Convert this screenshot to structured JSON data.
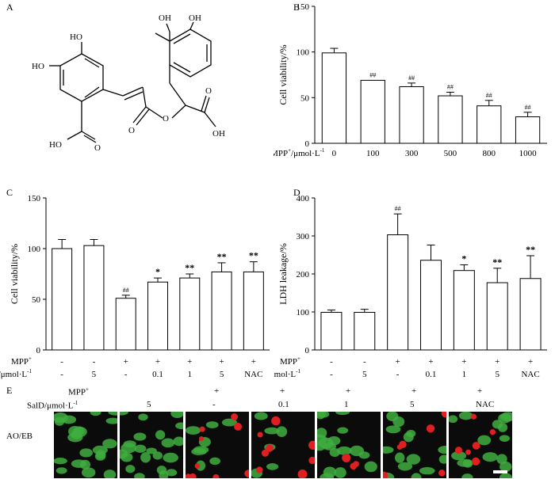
{
  "panels": {
    "a": "A",
    "b": "B",
    "c": "C",
    "d": "D",
    "e": "E"
  },
  "structure_labels": {
    "oh1": "HO",
    "oh2": "HO",
    "oh3": "OH",
    "oh4": "OH",
    "acid1_ho": "HO",
    "acid1_o": "O",
    "ester_o1": "O",
    "ester_o2": "O",
    "acid2_o": "O",
    "acid2_oh": "OH"
  },
  "panel_e": {
    "row_label_mpp": "MPP",
    "row_label_mpp_sup": "+",
    "row_label_sald": "SalD/μmol·L",
    "row_label_sald_sup": "-1",
    "stain_label": "AO/EB",
    "mpp": [
      "",
      "",
      "+",
      "+",
      "+",
      "+",
      "+"
    ],
    "sald": [
      "",
      "5",
      "-",
      "0.1",
      "1",
      "5",
      "NAC"
    ],
    "images": [
      {
        "green": 22,
        "red": 0
      },
      {
        "green": 22,
        "red": 0
      },
      {
        "green": 8,
        "red": 9
      },
      {
        "green": 6,
        "red": 8
      },
      {
        "green": 18,
        "red": 3
      },
      {
        "green": 14,
        "red": 6
      },
      {
        "green": 16,
        "red": 6
      }
    ],
    "colors": {
      "green": "#3fae3f",
      "red": "#e02020",
      "background": "#0b0b0b"
    }
  },
  "chart_data": [
    {
      "id": "B",
      "type": "bar",
      "ylabel": "Cell viability/%",
      "ylim": [
        0,
        150
      ],
      "yticks": [
        0,
        50,
        100,
        150
      ],
      "row_label": "MPP",
      "row_label_sup": "+",
      "row_label_unit": "/μmol·L",
      "row_label_unit_sup": "-1",
      "categories": [
        "0",
        "100",
        "300",
        "500",
        "800",
        "1000"
      ],
      "values": [
        99,
        69,
        62,
        52,
        41,
        29
      ],
      "errors": [
        5,
        0,
        4,
        4,
        6,
        5
      ],
      "annotations": [
        "",
        "##",
        "##",
        "##",
        "##",
        "##"
      ]
    },
    {
      "id": "C",
      "type": "bar",
      "ylabel": "Cell viability/%",
      "ylim": [
        0,
        150
      ],
      "yticks": [
        0,
        50,
        100,
        150
      ],
      "rows": [
        {
          "label": "MPP",
          "sup": "+",
          "values": [
            "-",
            "-",
            "+",
            "+",
            "+",
            "+",
            "+"
          ]
        },
        {
          "label": "SalD/μmol·L",
          "sup": "-1",
          "values": [
            "-",
            "5",
            "-",
            "0.1",
            "1",
            "5",
            "NAC"
          ]
        }
      ],
      "values": [
        100,
        103,
        51,
        67,
        71,
        77,
        77
      ],
      "errors": [
        9,
        6,
        3,
        4,
        4,
        9,
        10
      ],
      "annotations": [
        "",
        "",
        "##",
        "*",
        "**",
        "**",
        "**"
      ]
    },
    {
      "id": "D",
      "type": "bar",
      "ylabel": "LDH leakage/%",
      "ylim": [
        0,
        400
      ],
      "yticks": [
        0,
        100,
        200,
        300,
        400
      ],
      "rows": [
        {
          "label": "MPP",
          "sup": "+",
          "values": [
            "-",
            "-",
            "+",
            "+",
            "+",
            "+",
            "+"
          ]
        },
        {
          "label": "SalD/μmol·L",
          "sup": "-1",
          "values": [
            "-",
            "5",
            "-",
            "0.1",
            "1",
            "5",
            "NAC"
          ]
        }
      ],
      "values": [
        99,
        99,
        303,
        236,
        209,
        177,
        188
      ],
      "errors": [
        6,
        8,
        55,
        40,
        15,
        38,
        60
      ],
      "annotations": [
        "",
        "",
        "##",
        "",
        "*",
        "**",
        "**"
      ]
    }
  ]
}
